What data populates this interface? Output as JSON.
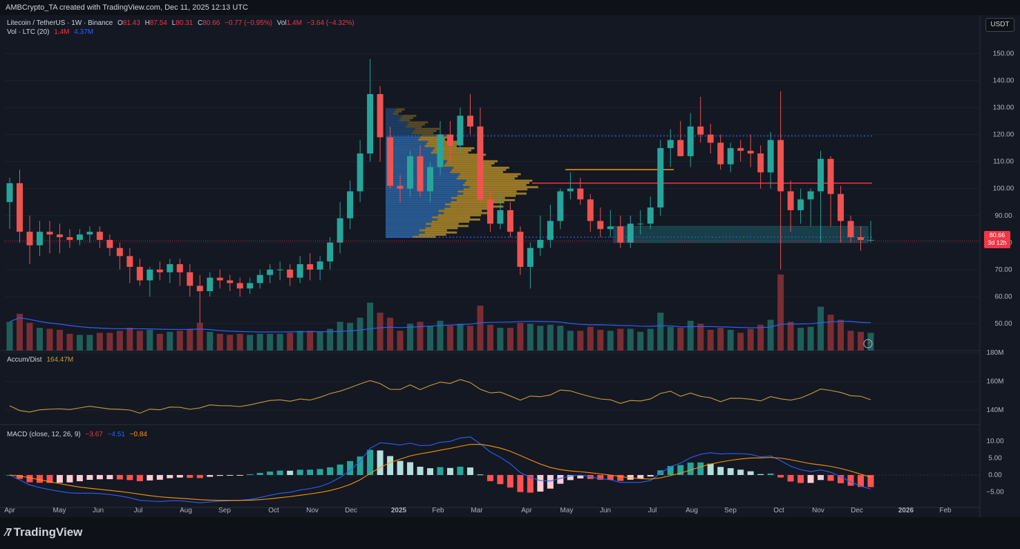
{
  "header": {
    "attribution": "AMBCrypto_TA created with TradingView.com, Dec 11, 2025 12:13 UTC"
  },
  "legend": {
    "symbol": "Litecoin / TetherUS · 1W · Binance",
    "o_label": "O",
    "o": "81.43",
    "h_label": "H",
    "h": "87.54",
    "l_label": "L",
    "l": "80.31",
    "c_label": "C",
    "c": "80.66",
    "change": "−0.77 (−0.95%)",
    "vol_label": "Vol",
    "vol": "1.4M",
    "vol_change": "−3.64 (−4.32%)",
    "vol_row_label": "Vol · LTC (20)",
    "vol_row_v1": "1.4M",
    "vol_row_v2": "4.37M"
  },
  "currency_button": "USDT",
  "price_tag": {
    "price": "80.66",
    "countdown": "3d 12h"
  },
  "accum_panel": {
    "label": "Accum/Dist",
    "value": "164.47M"
  },
  "macd_panel": {
    "label": "MACD (close, 12, 26, 9)",
    "v1": "−3.67",
    "v2": "−4.51",
    "v3": "−0.84"
  },
  "price_axis": [
    "150.00",
    "140.00",
    "130.00",
    "120.00",
    "110.00",
    "100.00",
    "90.00",
    "80.00",
    "70.00",
    "60.00",
    "50.00"
  ],
  "accum_axis": [
    "180M",
    "160M",
    "140M"
  ],
  "macd_axis": [
    "10.00",
    "5.00",
    "0.00",
    "−5.00"
  ],
  "time_axis": [
    "Apr",
    "May",
    "Jun",
    "Jul",
    "Aug",
    "Sep",
    "Oct",
    "Nov",
    "Dec",
    "2025",
    "Feb",
    "Mar",
    "Apr",
    "May",
    "Jun",
    "Jul",
    "Aug",
    "Sep",
    "Oct",
    "Nov",
    "Dec",
    "2026",
    "Feb"
  ],
  "brand": "TradingView",
  "colors": {
    "up": "#26a69a",
    "down": "#ef5350",
    "vol_up": "#1f5f5b",
    "vol_down": "#7a2e33",
    "ma": "#2962ff",
    "accum": "#c8a03a",
    "signal": "#ff9800"
  },
  "chart_data": {
    "type": "candlestick",
    "timeframe": "1W",
    "ylim": [
      40,
      155
    ],
    "candles": [
      [
        95,
        104,
        85,
        102
      ],
      [
        102,
        107,
        80,
        84
      ],
      [
        84,
        90,
        72,
        79
      ],
      [
        79,
        88,
        75,
        84
      ],
      [
        84,
        88,
        76,
        83
      ],
      [
        83,
        87,
        76,
        82
      ],
      [
        82,
        85,
        78,
        81
      ],
      [
        81,
        85,
        79,
        83
      ],
      [
        83,
        86,
        80,
        84
      ],
      [
        84,
        86,
        78,
        81
      ],
      [
        81,
        83,
        75,
        78
      ],
      [
        78,
        80,
        70,
        75
      ],
      [
        75,
        78,
        65,
        71
      ],
      [
        71,
        74,
        64,
        66
      ],
      [
        66,
        71,
        60,
        70
      ],
      [
        70,
        73,
        66,
        69
      ],
      [
        69,
        74,
        65,
        72
      ],
      [
        72,
        74,
        64,
        69
      ],
      [
        69,
        72,
        60,
        64
      ],
      [
        64,
        68,
        50,
        62
      ],
      [
        62,
        69,
        60,
        67
      ],
      [
        67,
        70,
        63,
        66
      ],
      [
        66,
        68,
        62,
        65
      ],
      [
        65,
        67,
        60,
        63
      ],
      [
        63,
        67,
        61,
        65
      ],
      [
        65,
        70,
        63,
        68
      ],
      [
        68,
        72,
        65,
        70
      ],
      [
        70,
        73,
        66,
        70
      ],
      [
        70,
        72,
        64,
        67
      ],
      [
        67,
        75,
        65,
        72
      ],
      [
        72,
        76,
        66,
        70
      ],
      [
        70,
        75,
        66,
        73
      ],
      [
        73,
        82,
        70,
        80
      ],
      [
        80,
        95,
        76,
        89
      ],
      [
        89,
        103,
        85,
        99
      ],
      [
        99,
        118,
        95,
        113
      ],
      [
        113,
        148,
        110,
        135
      ],
      [
        135,
        138,
        110,
        119
      ],
      [
        119,
        123,
        100,
        101
      ],
      [
        101,
        105,
        95,
        100
      ],
      [
        100,
        114,
        97,
        112
      ],
      [
        112,
        116,
        97,
        99
      ],
      [
        99,
        110,
        95,
        108
      ],
      [
        108,
        125,
        105,
        120
      ],
      [
        120,
        125,
        110,
        116
      ],
      [
        116,
        130,
        113,
        127
      ],
      [
        127,
        135,
        120,
        123
      ],
      [
        123,
        130,
        95,
        96
      ],
      [
        96,
        100,
        84,
        87
      ],
      [
        87,
        98,
        85,
        92
      ],
      [
        92,
        95,
        82,
        84
      ],
      [
        84,
        86,
        68,
        71
      ],
      [
        71,
        80,
        63,
        78
      ],
      [
        78,
        90,
        75,
        81
      ],
      [
        81,
        94,
        78,
        88
      ],
      [
        88,
        100,
        85,
        99
      ],
      [
        99,
        106,
        96,
        100
      ],
      [
        100,
        104,
        94,
        96
      ],
      [
        96,
        98,
        84,
        88
      ],
      [
        88,
        93,
        82,
        85
      ],
      [
        85,
        92,
        82,
        86
      ],
      [
        86,
        90,
        78,
        80
      ],
      [
        80,
        90,
        78,
        87
      ],
      [
        87,
        92,
        83,
        87
      ],
      [
        87,
        97,
        85,
        93
      ],
      [
        93,
        118,
        90,
        115
      ],
      [
        115,
        122,
        108,
        118
      ],
      [
        118,
        125,
        112,
        112
      ],
      [
        112,
        128,
        108,
        123
      ],
      [
        123,
        134,
        117,
        120
      ],
      [
        120,
        124,
        113,
        117
      ],
      [
        117,
        120,
        107,
        109
      ],
      [
        109,
        117,
        106,
        115
      ],
      [
        115,
        118,
        110,
        114
      ],
      [
        114,
        120,
        108,
        113
      ],
      [
        113,
        116,
        100,
        106
      ],
      [
        106,
        121,
        100,
        118
      ],
      [
        118,
        136,
        70,
        99
      ],
      [
        99,
        103,
        84,
        92
      ],
      [
        92,
        100,
        87,
        96
      ],
      [
        96,
        100,
        86,
        99
      ],
      [
        99,
        114,
        80,
        111
      ],
      [
        111,
        112,
        86,
        98
      ],
      [
        98,
        101,
        80,
        88
      ],
      [
        88,
        90,
        80,
        82
      ],
      [
        82,
        86,
        77,
        81
      ],
      [
        81,
        88,
        80,
        81
      ]
    ],
    "volume_ma_period": 20,
    "horizontal_levels": [
      119.5,
      102,
      82
    ],
    "support_zone": [
      80,
      86
    ],
    "short_level": {
      "value": 107
    },
    "macd": {
      "fast": 12,
      "slow": 26,
      "signal": 9,
      "last_macd": -4.51,
      "last_signal": -0.84,
      "last_hist": -3.67
    },
    "accum_dist_last": "164.47M"
  }
}
